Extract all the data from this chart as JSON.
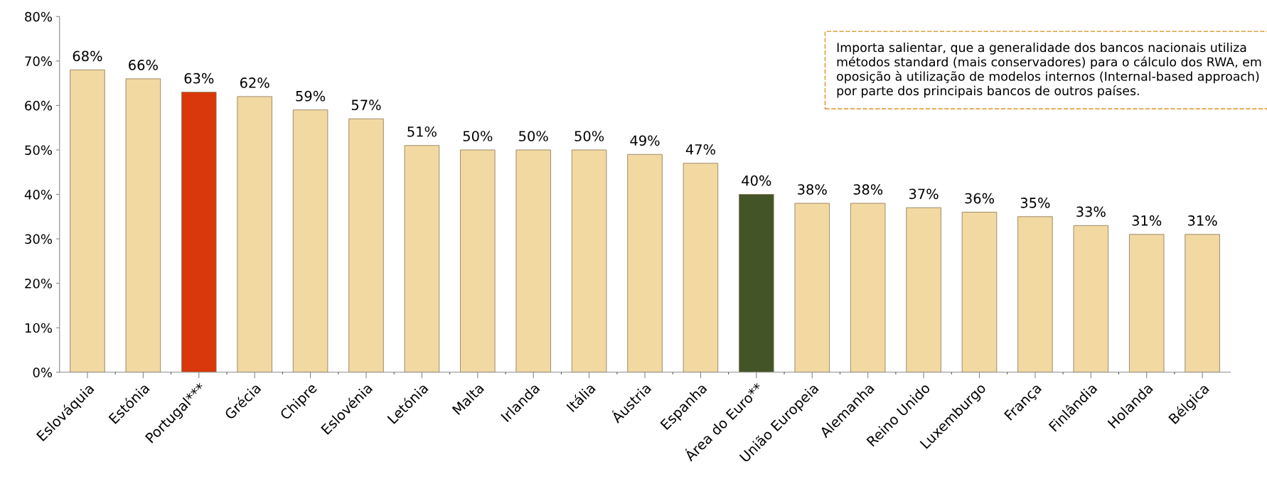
{
  "chart_data": {
    "type": "bar",
    "categories": [
      "Eslováquia",
      "Estónia",
      "Portugal***",
      "Grécia",
      "Chipre",
      "Eslovénia",
      "Letónia",
      "Malta",
      "Irlanda",
      "Itália",
      "Áustria",
      "Espanha",
      "Área do Euro**",
      "União Europeia",
      "Alemanha",
      "Reino Unido",
      "Luxemburgo",
      "França",
      "Finlândia",
      "Holanda",
      "Bélgica"
    ],
    "values": [
      68,
      66,
      63,
      62,
      59,
      57,
      51,
      50,
      50,
      50,
      49,
      47,
      40,
      38,
      38,
      37,
      36,
      35,
      33,
      31,
      31
    ],
    "value_labels": [
      "68%",
      "66%",
      "63%",
      "62%",
      "59%",
      "57%",
      "51%",
      "50%",
      "50%",
      "50%",
      "49%",
      "47%",
      "40%",
      "38%",
      "38%",
      "37%",
      "36%",
      "35%",
      "33%",
      "31%",
      "31%"
    ],
    "colors": [
      "#f2d9a2",
      "#f2d9a2",
      "#d8380c",
      "#f2d9a2",
      "#f2d9a2",
      "#f2d9a2",
      "#f2d9a2",
      "#f2d9a2",
      "#f2d9a2",
      "#f2d9a2",
      "#f2d9a2",
      "#f2d9a2",
      "#435426",
      "#f2d9a2",
      "#f2d9a2",
      "#f2d9a2",
      "#f2d9a2",
      "#f2d9a2",
      "#f2d9a2",
      "#f2d9a2",
      "#f2d9a2"
    ],
    "ylim": [
      0,
      80
    ],
    "yticks": [
      {
        "value": 0,
        "label": "0%"
      },
      {
        "value": 10,
        "label": "10%"
      },
      {
        "value": 20,
        "label": "20%"
      },
      {
        "value": 30,
        "label": "30%"
      },
      {
        "value": 40,
        "label": "40%"
      },
      {
        "value": 50,
        "label": "50%"
      },
      {
        "value": 60,
        "label": "60%"
      },
      {
        "value": 70,
        "label": "70%"
      },
      {
        "value": 80,
        "label": "80%"
      }
    ],
    "grid": false,
    "legend": false,
    "annotations": [
      "Importa salientar, que a generalidade dos bancos nacionais utiliza métodos standard (mais conservadores) para o cálculo dos RWA, em oposição à utilização de modelos internos (Internal-based approach) por parte dos principais bancos de outros países."
    ]
  }
}
